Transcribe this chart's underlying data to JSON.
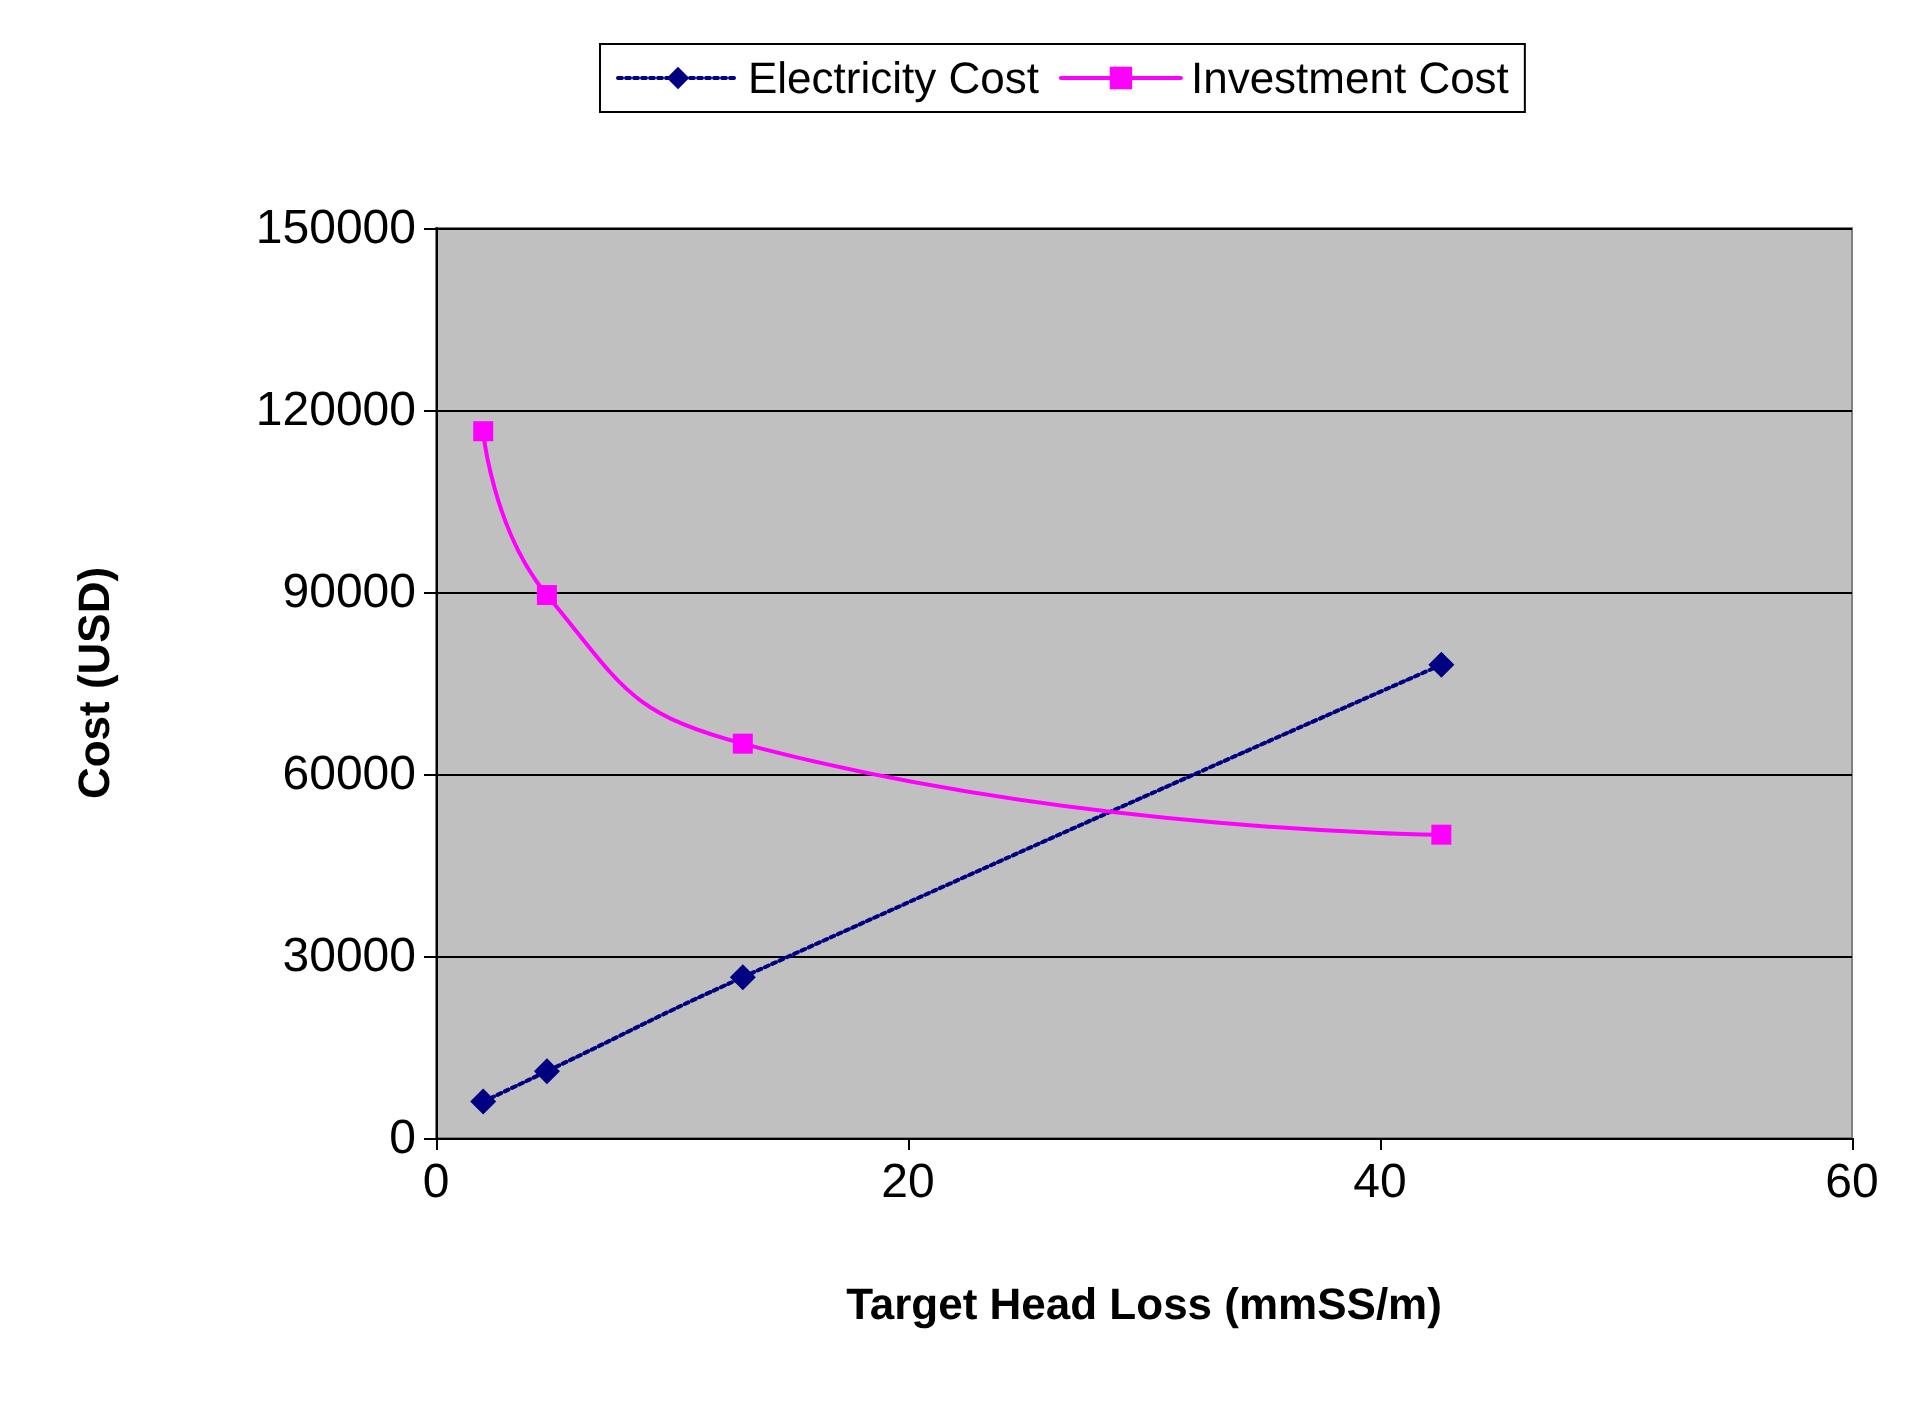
{
  "chart_data": {
    "type": "line",
    "xlabel": "Target Head Loss (mmSS/m)",
    "ylabel": "Cost (USD)",
    "x": [
      2,
      4.7,
      13,
      42.6
    ],
    "series": [
      {
        "name": "Electricity Cost",
        "color": "#000080",
        "values": [
          6000,
          11000,
          26500,
          78000
        ],
        "marker": "diamond",
        "line_style": "dotted"
      },
      {
        "name": "Investment Cost",
        "color": "#ff00ff",
        "values": [
          116500,
          89500,
          65000,
          50000
        ],
        "marker": "square",
        "line_style": "solid"
      }
    ],
    "xlim": [
      0,
      60
    ],
    "xticks": [
      0,
      20,
      40,
      60
    ],
    "ylim": [
      0,
      150000
    ],
    "yticks": [
      0,
      30000,
      60000,
      90000,
      120000,
      150000
    ],
    "grid": "y",
    "legend": "top"
  }
}
